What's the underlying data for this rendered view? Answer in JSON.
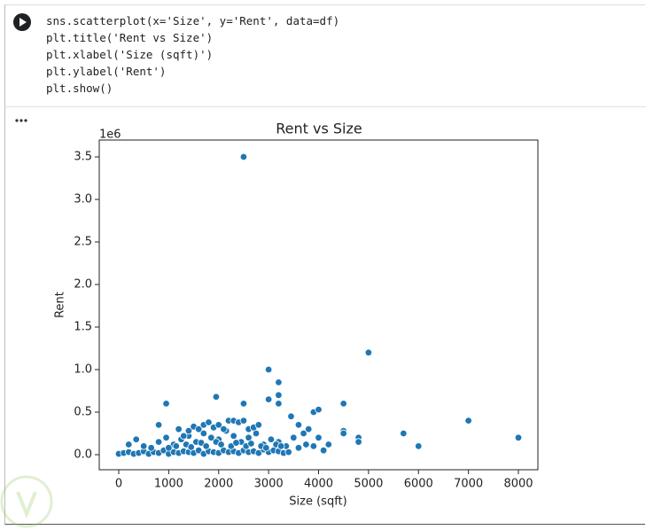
{
  "code": {
    "lines": [
      "sns.scatterplot(x='Size', y='Rent', data=df)",
      "plt.title('Rent vs Size')",
      "plt.xlabel('Size (sqft)')",
      "plt.ylabel('Rent')",
      "plt.show()"
    ]
  },
  "chart_data": {
    "type": "scatter",
    "title": "Rent vs Size",
    "x_label": "Size (sqft)",
    "y_label": "Rent",
    "y_offset_label": "1e6",
    "color": "#1f77b4",
    "xlim": [
      -390,
      8390
    ],
    "ylim": [
      -0.177,
      3.698
    ],
    "xticks": [
      0,
      1000,
      2000,
      3000,
      4000,
      5000,
      6000,
      7000,
      8000
    ],
    "yticks": [
      {
        "value": 0,
        "label": "0.0"
      },
      0.5,
      {
        "value": 1,
        "label": "1.0"
      },
      1.5,
      {
        "value": 2,
        "label": "2.0"
      },
      2.5,
      {
        "value": 3,
        "label": "3.0"
      },
      3.5
    ],
    "x": [
      0,
      100,
      200,
      300,
      400,
      500,
      600,
      700,
      800,
      900,
      1000,
      1100,
      1200,
      1300,
      1400,
      1500,
      1600,
      1700,
      1800,
      1900,
      2000,
      2100,
      2200,
      2300,
      2400,
      2500,
      2600,
      2700,
      2800,
      2900,
      3000,
      3100,
      3200,
      3300,
      3400,
      200,
      350,
      500,
      650,
      800,
      950,
      1100,
      1250,
      1400,
      1550,
      1700,
      1850,
      2000,
      2150,
      2300,
      2450,
      2600,
      2750,
      2900,
      3050,
      3200,
      3350,
      3500,
      1200,
      1300,
      1400,
      1500,
      1600,
      1700,
      1800,
      1900,
      2000,
      2100,
      2200,
      2300,
      2400,
      2500,
      2600,
      2700,
      2800,
      1000,
      1150,
      1350,
      1450,
      1650,
      1750,
      1950,
      2050,
      2250,
      2350,
      2550,
      2650,
      2850,
      2950,
      3150,
      3250,
      3600,
      3750,
      3900,
      4100,
      2500,
      5000,
      3000,
      3200,
      3200,
      950,
      1950,
      2500,
      3000,
      3200,
      4500,
      3900,
      4000,
      3450,
      7000,
      5700,
      6000,
      8000,
      800,
      4800,
      4800,
      4500,
      4500,
      4200,
      4000,
      3800,
      3600,
      3700
    ],
    "y": [
      0.01,
      0.02,
      0.03,
      0.01,
      0.02,
      0.04,
      0.01,
      0.03,
      0.02,
      0.05,
      0.01,
      0.03,
      0.02,
      0.04,
      0.03,
      0.02,
      0.05,
      0.01,
      0.04,
      0.03,
      0.02,
      0.05,
      0.03,
      0.04,
      0.02,
      0.05,
      0.03,
      0.04,
      0.02,
      0.06,
      0.03,
      0.05,
      0.04,
      0.02,
      0.03,
      0.12,
      0.18,
      0.1,
      0.08,
      0.15,
      0.2,
      0.12,
      0.18,
      0.22,
      0.15,
      0.25,
      0.2,
      0.18,
      0.28,
      0.22,
      0.15,
      0.2,
      0.25,
      0.12,
      0.18,
      0.15,
      0.1,
      0.2,
      0.3,
      0.22,
      0.28,
      0.33,
      0.3,
      0.35,
      0.38,
      0.32,
      0.35,
      0.3,
      0.4,
      0.4,
      0.38,
      0.4,
      0.3,
      0.32,
      0.35,
      0.08,
      0.1,
      0.12,
      0.09,
      0.14,
      0.1,
      0.15,
      0.12,
      0.1,
      0.14,
      0.1,
      0.13,
      0.1,
      0.08,
      0.12,
      0.1,
      0.08,
      0.12,
      0.1,
      0.05,
      3.5,
      1.2,
      1.0,
      0.85,
      0.7,
      0.6,
      0.68,
      0.6,
      0.65,
      0.6,
      0.6,
      0.5,
      0.53,
      0.45,
      0.4,
      0.25,
      0.1,
      0.2,
      0.35,
      0.2,
      0.15,
      0.28,
      0.25,
      0.12,
      0.2,
      0.3,
      0.35,
      0.25
    ]
  }
}
